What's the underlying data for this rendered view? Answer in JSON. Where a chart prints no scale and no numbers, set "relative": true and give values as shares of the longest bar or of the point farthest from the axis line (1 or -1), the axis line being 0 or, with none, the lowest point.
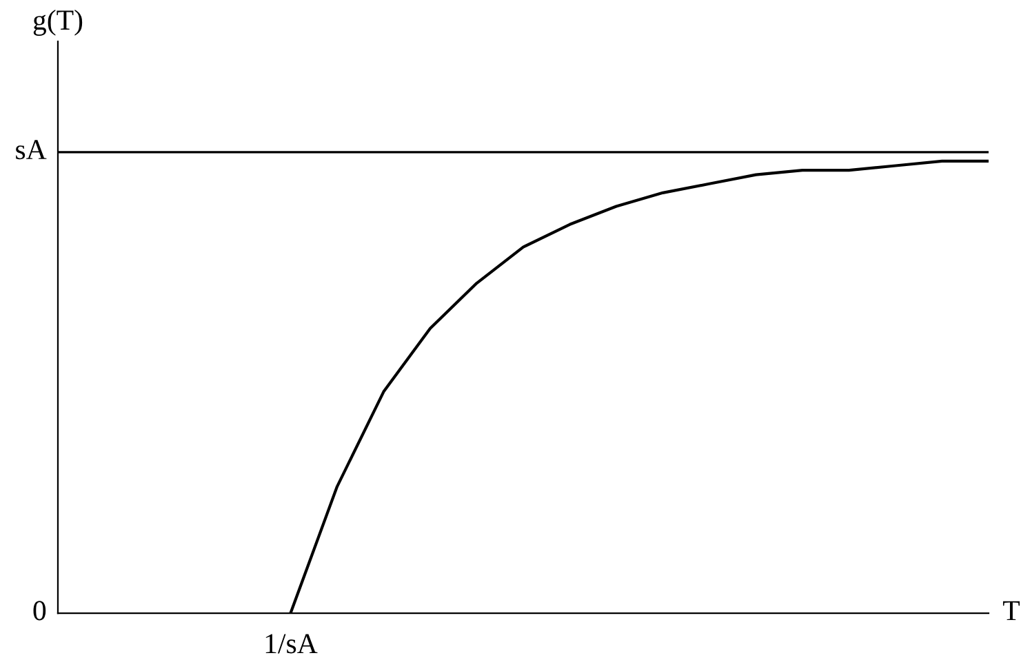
{
  "chart_data": {
    "type": "line",
    "xlabel": "T",
    "ylabel": "g(T)",
    "relative": true,
    "categories": [
      null,
      null,
      null,
      null,
      null,
      null,
      null,
      null,
      null,
      null,
      null,
      null,
      null,
      null,
      null,
      null,
      null,
      null,
      null,
      null,
      null
    ],
    "series": [
      {
        "color": "#000000",
        "values": [
          null,
          null,
          null,
          null,
          null,
          0,
          0.28,
          0.49,
          0.63,
          0.73,
          0.81,
          0.86,
          0.9,
          0.93,
          0.95,
          0.97,
          0.98,
          0.98,
          0.99,
          1.0,
          1
        ]
      }
    ],
    "annotations": [
      "0",
      "sA",
      "1/sA"
    ],
    "ref_lines": [
      {
        "axis": "y",
        "value": 1.02,
        "color": "#000000"
      }
    ],
    "grid": false,
    "legend": false,
    "marker": "none",
    "line_style": "solid"
  }
}
